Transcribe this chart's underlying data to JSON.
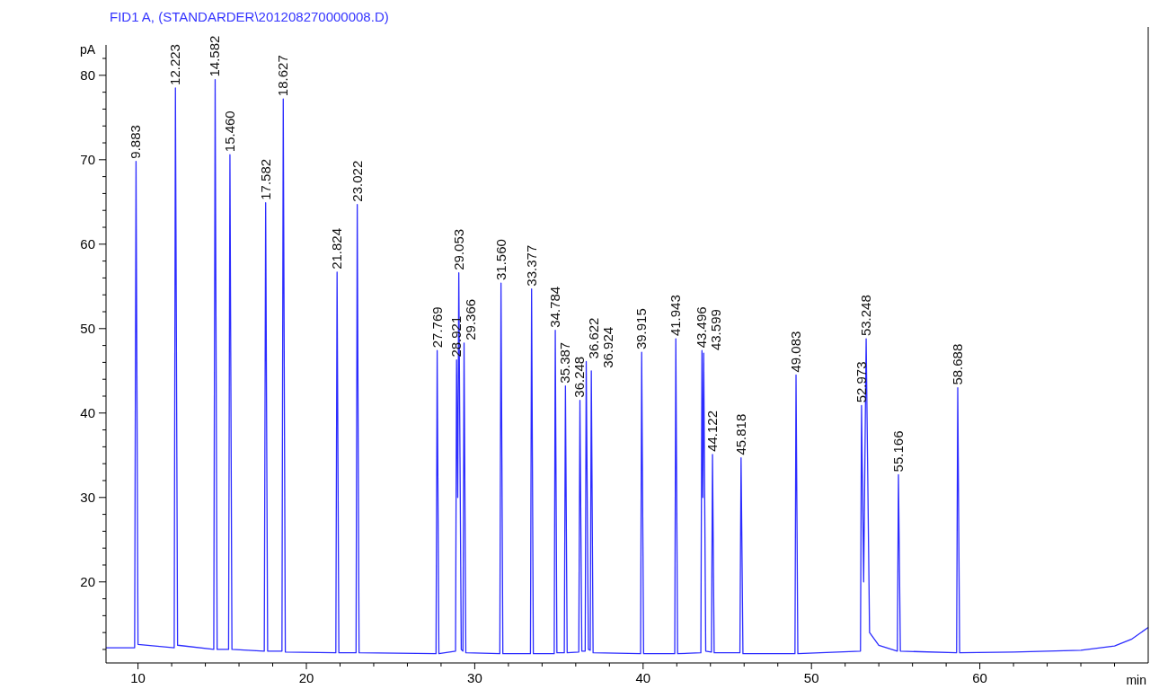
{
  "chart_data": {
    "type": "line",
    "title": "FID1 A,  (STANDARDER\\201208270000008.D)",
    "xlabel": "min",
    "ylabel": "pA",
    "xlim": [
      8.1,
      70
    ],
    "ylim": [
      10.4,
      83.6
    ],
    "xticks": [
      10,
      {
        "value": 12,
        "label": null
      },
      {
        "value": 14,
        "label": null
      },
      {
        "value": 16,
        "label": null
      },
      {
        "value": 18,
        "label": null
      },
      20,
      {
        "value": 22,
        "label": null
      },
      {
        "value": 24,
        "label": null
      },
      {
        "value": 26,
        "label": null
      },
      {
        "value": 28,
        "label": null
      },
      30,
      {
        "value": 32,
        "label": null
      },
      {
        "value": 34,
        "label": null
      },
      {
        "value": 36,
        "label": null
      },
      {
        "value": 38,
        "label": null
      },
      40,
      {
        "value": 42,
        "label": null
      },
      {
        "value": 44,
        "label": null
      },
      {
        "value": 46,
        "label": null
      },
      {
        "value": 48,
        "label": null
      },
      50,
      {
        "value": 52,
        "label": null
      },
      {
        "value": 54,
        "label": null
      },
      {
        "value": 56,
        "label": null
      },
      {
        "value": 58,
        "label": null
      },
      60,
      {
        "value": 62,
        "label": null
      },
      {
        "value": 64,
        "label": null
      },
      {
        "value": 66,
        "label": null
      },
      {
        "value": 68,
        "label": null
      }
    ],
    "yticks": [
      {
        "value": 12,
        "label": null
      },
      {
        "value": 14,
        "label": null
      },
      {
        "value": 16,
        "label": null
      },
      {
        "value": 18,
        "label": null
      },
      20,
      {
        "value": 22,
        "label": null
      },
      {
        "value": 24,
        "label": null
      },
      {
        "value": 26,
        "label": null
      },
      {
        "value": 28,
        "label": null
      },
      30,
      {
        "value": 32,
        "label": null
      },
      {
        "value": 34,
        "label": null
      },
      {
        "value": 36,
        "label": null
      },
      {
        "value": 38,
        "label": null
      },
      40,
      {
        "value": 42,
        "label": null
      },
      {
        "value": 44,
        "label": null
      },
      {
        "value": 46,
        "label": null
      },
      {
        "value": 48,
        "label": null
      },
      50,
      {
        "value": 52,
        "label": null
      },
      {
        "value": 54,
        "label": null
      },
      {
        "value": 56,
        "label": null
      },
      {
        "value": 58,
        "label": null
      },
      60,
      {
        "value": 62,
        "label": null
      },
      {
        "value": 64,
        "label": null
      },
      {
        "value": 66,
        "label": null
      },
      {
        "value": 68,
        "label": null
      },
      70,
      {
        "value": 72,
        "label": null
      },
      {
        "value": 74,
        "label": null
      },
      {
        "value": 76,
        "label": null
      },
      {
        "value": 78,
        "label": null
      },
      80,
      {
        "value": 82,
        "label": null
      }
    ],
    "grid": false,
    "marker": "none",
    "line_style": "solid",
    "series": [
      {
        "color": "#2b2bff",
        "x": [
          8.1,
          9.8,
          9.883,
          10.0,
          12.15,
          12.223,
          12.35,
          14.5,
          14.582,
          14.7,
          15.38,
          15.46,
          15.58,
          17.5,
          17.582,
          17.7,
          18.55,
          18.627,
          18.75,
          21.75,
          21.824,
          21.93,
          22.95,
          23.022,
          23.13,
          27.7,
          27.769,
          27.87,
          28.86,
          28.921,
          28.99,
          29.053,
          29.2,
          29.3,
          29.366,
          29.47,
          31.49,
          31.56,
          31.67,
          33.31,
          33.377,
          33.48,
          34.72,
          34.784,
          34.88,
          35.32,
          35.387,
          35.49,
          36.18,
          36.248,
          36.36,
          36.56,
          36.622,
          36.75,
          36.86,
          36.924,
          37.03,
          39.85,
          39.915,
          40.03,
          41.88,
          41.943,
          42.05,
          43.43,
          43.496,
          43.55,
          43.599,
          43.72,
          44.06,
          44.122,
          44.22,
          45.75,
          45.818,
          45.93,
          49.02,
          49.083,
          49.19,
          52.91,
          52.973,
          53.1,
          53.248,
          53.45,
          54.0,
          55.1,
          55.166,
          55.28,
          58.62,
          58.688,
          58.8,
          62,
          66,
          68,
          69,
          70
        ],
        "values": [
          12.2,
          12.2,
          69.8,
          12.6,
          12.2,
          78.5,
          12.5,
          12.0,
          79.5,
          12.0,
          12.0,
          70.6,
          12.0,
          11.8,
          64.9,
          11.8,
          11.8,
          77.2,
          11.7,
          11.6,
          56.7,
          11.6,
          11.6,
          64.7,
          11.6,
          11.5,
          47.4,
          11.5,
          11.8,
          46.3,
          30,
          56.6,
          12,
          11.8,
          48.3,
          11.6,
          11.5,
          55.4,
          11.5,
          11.5,
          54.7,
          11.5,
          11.5,
          49.8,
          11.6,
          11.6,
          43.2,
          11.6,
          11.7,
          41.5,
          11.8,
          11.8,
          46.1,
          12.0,
          11.9,
          45.0,
          11.6,
          11.5,
          47.2,
          11.5,
          11.5,
          48.8,
          11.5,
          11.6,
          47.4,
          30,
          47.1,
          11.8,
          11.7,
          35.1,
          11.6,
          11.6,
          34.7,
          11.5,
          11.5,
          44.5,
          11.5,
          11.8,
          40.9,
          20,
          48.8,
          14,
          12.5,
          11.8,
          32.7,
          11.8,
          11.6,
          43.0,
          11.6,
          11.7,
          11.9,
          12.4,
          13.2,
          14.6
        ]
      }
    ],
    "annotations": [
      {
        "text": "9.883",
        "x": 9.883,
        "y": 69.8
      },
      {
        "text": "12.223",
        "x": 12.223,
        "y": 78.5
      },
      {
        "text": "14.582",
        "x": 14.582,
        "y": 79.5
      },
      {
        "text": "15.460",
        "x": 15.46,
        "y": 70.6
      },
      {
        "text": "17.582",
        "x": 17.582,
        "y": 64.9
      },
      {
        "text": "18.627",
        "x": 18.627,
        "y": 77.2
      },
      {
        "text": "21.824",
        "x": 21.824,
        "y": 56.7
      },
      {
        "text": "23.022",
        "x": 23.022,
        "y": 64.7
      },
      {
        "text": "27.769",
        "x": 27.769,
        "y": 47.4
      },
      {
        "text": "28.921",
        "x": 28.921,
        "y": 46.3
      },
      {
        "text": "29.053",
        "x": 29.053,
        "y": 56.6
      },
      {
        "text": "29.366",
        "x": 29.366,
        "y": 48.3
      },
      {
        "text": "31.560",
        "x": 31.56,
        "y": 55.4
      },
      {
        "text": "33.377",
        "x": 33.377,
        "y": 54.7
      },
      {
        "text": "34.784",
        "x": 34.784,
        "y": 49.8
      },
      {
        "text": "35.387",
        "x": 35.387,
        "y": 43.2
      },
      {
        "text": "36.248",
        "x": 36.248,
        "y": 41.5
      },
      {
        "text": "36.622",
        "x": 36.622,
        "y": 46.1
      },
      {
        "text": "36.924",
        "x": 36.924,
        "y": 45.0
      },
      {
        "text": "39.915",
        "x": 39.915,
        "y": 47.2
      },
      {
        "text": "41.943",
        "x": 41.943,
        "y": 48.8
      },
      {
        "text": "43.496",
        "x": 43.496,
        "y": 47.4
      },
      {
        "text": "43.599",
        "x": 43.599,
        "y": 47.1
      },
      {
        "text": "44.122",
        "x": 44.122,
        "y": 35.1
      },
      {
        "text": "45.818",
        "x": 45.818,
        "y": 34.7
      },
      {
        "text": "49.083",
        "x": 49.083,
        "y": 44.5
      },
      {
        "text": "52.973",
        "x": 52.973,
        "y": 40.9
      },
      {
        "text": "53.248",
        "x": 53.248,
        "y": 48.8
      },
      {
        "text": "55.166",
        "x": 55.166,
        "y": 32.7
      },
      {
        "text": "58.688",
        "x": 58.688,
        "y": 43.0
      }
    ]
  }
}
